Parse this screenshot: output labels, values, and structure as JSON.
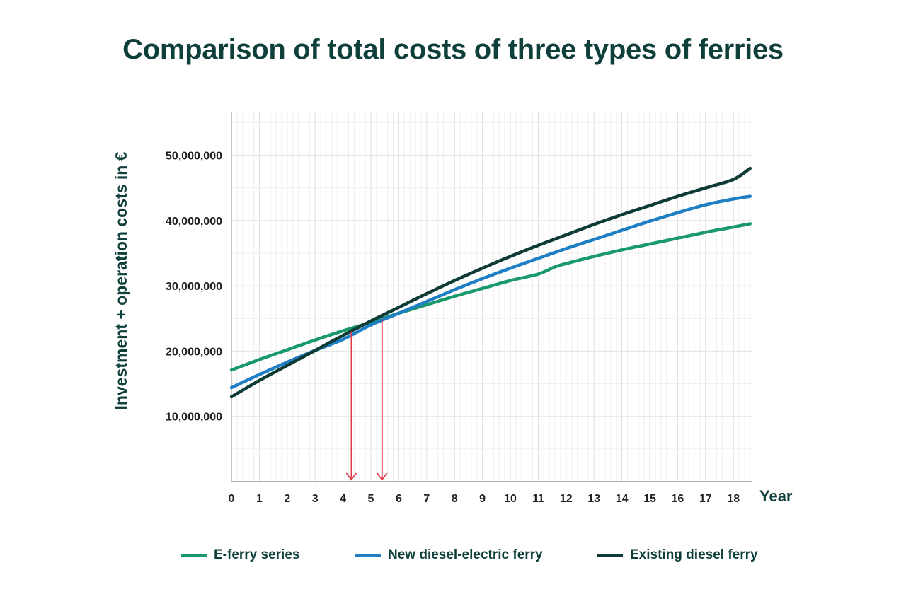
{
  "chart_data": {
    "type": "line",
    "title": "Comparison of total costs of three types of ferries",
    "xlabel": "Year",
    "ylabel": "Investment + operation costs in €",
    "xlim": [
      0,
      18.6
    ],
    "ylim": [
      0,
      57000000
    ],
    "x_ticks": [
      "0",
      "1",
      "2",
      "3",
      "4",
      "5",
      "6",
      "7",
      "8",
      "9",
      "10",
      "11",
      "12",
      "13",
      "14",
      "15",
      "16",
      "17",
      "18"
    ],
    "y_ticks": [
      {
        "value": 10000000,
        "label": "10,000,000"
      },
      {
        "value": 20000000,
        "label": "20,000,000"
      },
      {
        "value": 30000000,
        "label": "30,000,000"
      },
      {
        "value": 40000000,
        "label": "40,000,000"
      },
      {
        "value": 50000000,
        "label": "50,000,000"
      }
    ],
    "grid": true,
    "legend_position": "bottom",
    "series": [
      {
        "name": "E-ferry series",
        "color": "#1a9a6a",
        "x": [
          0,
          1,
          2,
          3,
          4,
          5,
          6,
          7,
          8,
          9,
          10,
          11,
          11.6,
          12,
          13,
          14,
          15,
          16,
          17,
          18,
          18.6
        ],
        "y": [
          17100000,
          18700000,
          20200000,
          21700000,
          23100000,
          24400000,
          25800000,
          27100000,
          28400000,
          29600000,
          30800000,
          31800000,
          32900000,
          33400000,
          34500000,
          35500000,
          36400000,
          37300000,
          38200000,
          39000000,
          39500000
        ]
      },
      {
        "name": "New diesel-electric ferry",
        "color": "#1f7fc4",
        "x": [
          0,
          1,
          2,
          3,
          4,
          5,
          6,
          7,
          8,
          9,
          10,
          11,
          12,
          13,
          14,
          15,
          16,
          17,
          18,
          18.6
        ],
        "y": [
          14400000,
          16400000,
          18300000,
          20100000,
          21800000,
          24000000,
          25800000,
          27600000,
          29400000,
          31100000,
          32700000,
          34200000,
          35700000,
          37100000,
          38500000,
          39900000,
          41200000,
          42400000,
          43300000,
          43700000
        ]
      },
      {
        "name": "Existing diesel ferry",
        "color": "#0e3b36",
        "x": [
          0,
          1,
          2,
          3,
          4,
          5,
          6,
          7,
          8,
          9,
          10,
          11,
          12,
          13,
          14,
          15,
          16,
          17,
          18,
          18.6
        ],
        "y": [
          13000000,
          15500000,
          17800000,
          20100000,
          22400000,
          24600000,
          26700000,
          28800000,
          30800000,
          32700000,
          34500000,
          36200000,
          37800000,
          39400000,
          40900000,
          42300000,
          43700000,
          45000000,
          46300000,
          48000000
        ]
      }
    ],
    "annotations": [
      {
        "type": "arrow-down",
        "x": 4.3,
        "y_from": 23000000,
        "color": "#e03a4a"
      },
      {
        "type": "arrow-down",
        "x": 5.4,
        "y_from": 24900000,
        "color": "#e03a4a"
      }
    ]
  }
}
